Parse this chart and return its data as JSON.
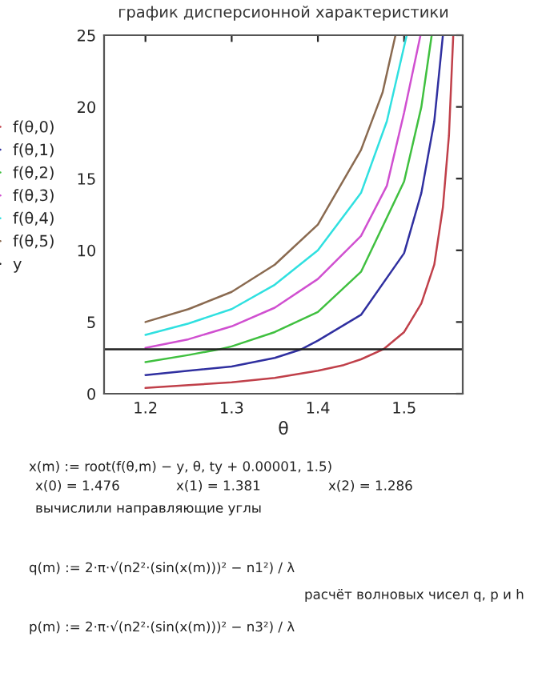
{
  "chart_data": {
    "type": "line",
    "title": "график дисперсионной характеристики",
    "xlabel": "θ",
    "xlim": [
      1.152,
      1.568
    ],
    "xticks": [
      1.2,
      1.3,
      1.4,
      1.5
    ],
    "ylim": [
      0,
      25
    ],
    "yticks": [
      0,
      5,
      10,
      15,
      20,
      25
    ],
    "grid": false,
    "legend": "left",
    "marker": "none",
    "line_style": "solid",
    "series": [
      {
        "name": "f(θ,0)",
        "color": "#c0404a",
        "x": [
          1.2,
          1.25,
          1.3,
          1.35,
          1.4,
          1.43,
          1.45,
          1.476,
          1.5,
          1.52,
          1.535,
          1.545,
          1.552,
          1.557
        ],
        "values": [
          0.4,
          0.6,
          0.8,
          1.1,
          1.6,
          2.0,
          2.4,
          3.1,
          4.3,
          6.3,
          9,
          13,
          18,
          25
        ]
      },
      {
        "name": "f(θ,1)",
        "color": "#3030a0",
        "x": [
          1.2,
          1.25,
          1.3,
          1.35,
          1.381,
          1.4,
          1.45,
          1.5,
          1.52,
          1.535,
          1.545
        ],
        "values": [
          1.3,
          1.6,
          1.9,
          2.5,
          3.1,
          3.7,
          5.5,
          9.8,
          14,
          19,
          25
        ]
      },
      {
        "name": "f(θ,2)",
        "color": "#40c040",
        "x": [
          1.2,
          1.25,
          1.286,
          1.3,
          1.35,
          1.4,
          1.45,
          1.5,
          1.52,
          1.532
        ],
        "values": [
          2.2,
          2.7,
          3.1,
          3.3,
          4.3,
          5.7,
          8.5,
          14.8,
          20,
          25
        ]
      },
      {
        "name": "f(θ,3)",
        "color": "#d050d0",
        "x": [
          1.2,
          1.25,
          1.3,
          1.35,
          1.4,
          1.45,
          1.48,
          1.5,
          1.519
        ],
        "values": [
          3.2,
          3.8,
          4.7,
          6.0,
          8.0,
          11,
          14.5,
          19.6,
          25
        ]
      },
      {
        "name": "f(θ,4)",
        "color": "#30e0e0",
        "x": [
          1.2,
          1.25,
          1.3,
          1.35,
          1.4,
          1.45,
          1.48,
          1.503
        ],
        "values": [
          4.1,
          4.9,
          5.9,
          7.6,
          10,
          14,
          19,
          25
        ]
      },
      {
        "name": "f(θ,5)",
        "color": "#8a6a50",
        "x": [
          1.2,
          1.25,
          1.3,
          1.35,
          1.4,
          1.45,
          1.475,
          1.49
        ],
        "values": [
          5.0,
          5.9,
          7.1,
          9.0,
          11.8,
          17,
          21,
          25
        ]
      },
      {
        "name": "y",
        "color": "#202020",
        "x": [
          1.152,
          1.568
        ],
        "values": [
          3.1,
          3.1
        ]
      }
    ],
    "annotations": [
      "x(m) := root(f(θ,m) − y, θ, ty + 0.00001, 1.5)",
      "x(0) = 1.476",
      "x(1) = 1.381",
      "x(2) = 1.286",
      "вычислили направляющие углы",
      "q(m) := 2·π·√(n2²·(sin(x(m)))² − n1²) / λ",
      "расчёт волновых чисел q, p и h",
      "p(m) := 2·π·√(n2²·(sin(x(m)))² − n3²) / λ"
    ]
  }
}
